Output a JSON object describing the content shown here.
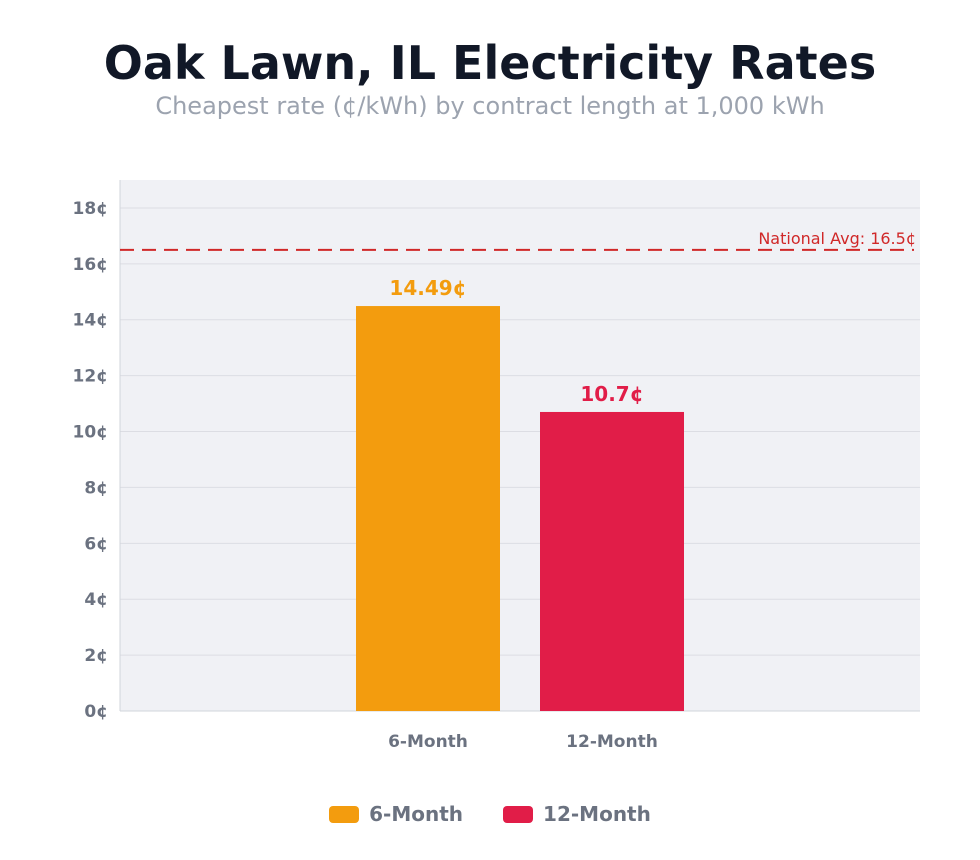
{
  "header": {
    "title": "Oak Lawn, IL Electricity Rates",
    "subtitle": "Cheapest rate (¢/kWh) by contract length at 1,000 kWh"
  },
  "colors": {
    "six_month": "#f39c0e",
    "twelve_month": "#e11d48",
    "national_avg_line": "#d02828",
    "plot_bg": "#f0f1f5",
    "grid": "#dcdde3",
    "tick_text": "#6b7280"
  },
  "chart_data": {
    "type": "bar",
    "categories": [
      "6-Month",
      "12-Month"
    ],
    "values": [
      14.49,
      10.7
    ],
    "value_labels": [
      "14.49¢",
      "10.7¢"
    ],
    "title": "Oak Lawn, IL Electricity Rates",
    "subtitle": "Cheapest rate (¢/kWh) by contract length at 1,000 kWh",
    "xlabel": "",
    "ylabel": "",
    "ylim": [
      0,
      19
    ],
    "yticks": [
      0,
      2,
      4,
      6,
      8,
      10,
      12,
      14,
      16,
      18
    ],
    "ytick_labels": [
      "0¢",
      "2¢",
      "4¢",
      "6¢",
      "8¢",
      "10¢",
      "12¢",
      "14¢",
      "16¢",
      "18¢"
    ],
    "grid": true,
    "reference_line": {
      "value": 16.5,
      "label": "National Avg: 16.5¢",
      "style": "dashed"
    },
    "legend": {
      "position": "bottom",
      "entries": [
        "6-Month",
        "12-Month"
      ]
    }
  }
}
